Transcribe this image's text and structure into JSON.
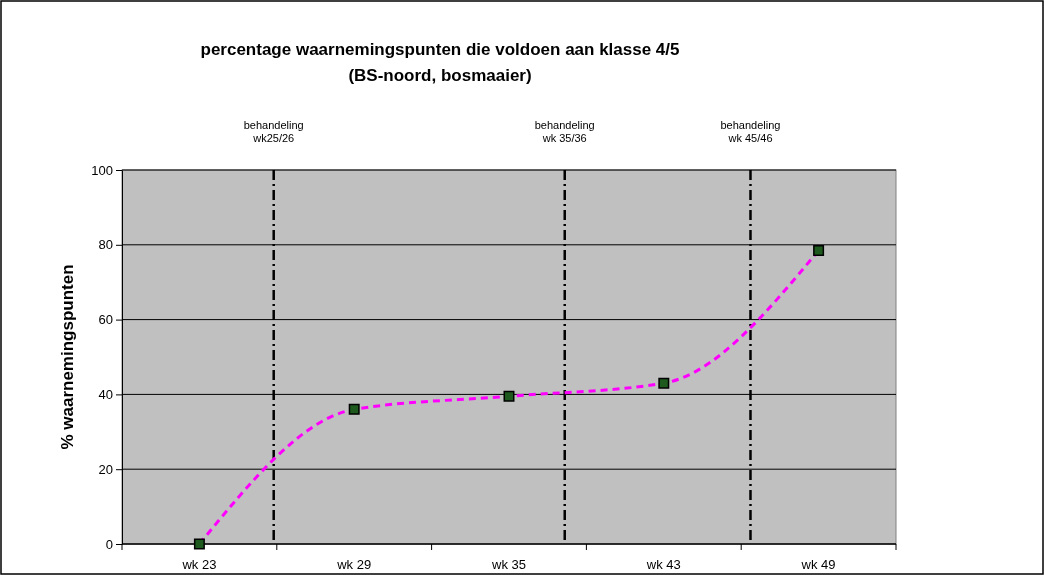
{
  "chart_data": {
    "type": "line",
    "title": "percentage waarnemingspunten die voldoen aan klasse 4/5",
    "subtitle": "(BS-noord, bosmaaier)",
    "ylabel": "% waarnemingspunten",
    "categories": [
      "wk 23",
      "wk 29",
      "wk 35",
      "wk 43",
      "wk 49"
    ],
    "series": [
      {
        "color": "#ff00ff",
        "values": [
          0,
          36,
          39.5,
          43,
          78.5
        ]
      }
    ],
    "ylim": [
      0,
      100
    ],
    "yticks": [
      0,
      20,
      40,
      60,
      80,
      100
    ],
    "grid": "y",
    "marker": "square",
    "line_style": "dashed",
    "annotations": [
      "behandeling wk25/26",
      "behandeling wk 35/36",
      "behandeling wk 45/46"
    ]
  }
}
